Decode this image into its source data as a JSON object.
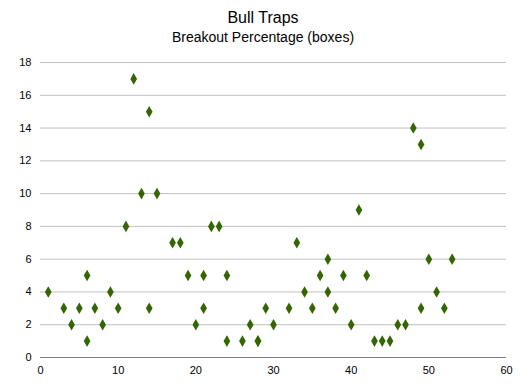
{
  "chart_data": {
    "type": "scatter",
    "title": "Bull Traps",
    "subtitle": "Breakout Percentage (boxes)",
    "x": [
      1,
      3,
      4,
      5,
      6,
      6,
      7,
      8,
      9,
      10,
      11,
      12,
      13,
      14,
      14,
      15,
      17,
      18,
      19,
      20,
      21,
      21,
      22,
      23,
      24,
      24,
      26,
      27,
      28,
      28,
      29,
      30,
      32,
      33,
      34,
      35,
      36,
      37,
      37,
      38,
      39,
      40,
      41,
      42,
      43,
      44,
      45,
      46,
      47,
      48,
      49,
      49,
      50,
      51,
      52,
      53
    ],
    "values": [
      4,
      3,
      2,
      3,
      1,
      5,
      3,
      2,
      4,
      3,
      8,
      17,
      10,
      15,
      3,
      10,
      7,
      7,
      5,
      2,
      5,
      3,
      8,
      8,
      5,
      1,
      1,
      2,
      1,
      1,
      3,
      2,
      3,
      7,
      4,
      3,
      5,
      6,
      4,
      3,
      5,
      2,
      9,
      5,
      1,
      1,
      1,
      2,
      2,
      14,
      13,
      3,
      6,
      4,
      3,
      6
    ],
    "color": "#336600",
    "marker": "diamond",
    "xlim": [
      0,
      60
    ],
    "ylim": [
      0,
      18
    ],
    "xticks": [
      0,
      10,
      20,
      30,
      40,
      50,
      60
    ],
    "yticks": [
      0,
      2,
      4,
      6,
      8,
      10,
      12,
      14,
      16,
      18
    ],
    "grid": "y"
  }
}
